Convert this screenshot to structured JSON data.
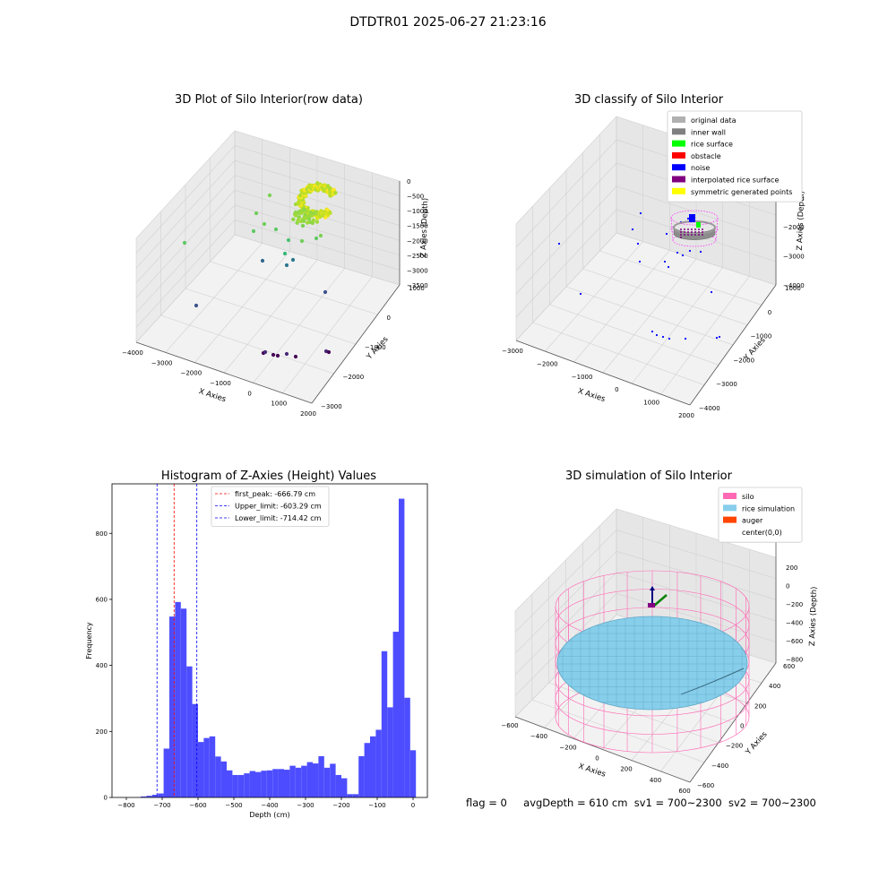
{
  "figure": {
    "suptitle": "DTDTR01 2025-06-27 21:23:16",
    "footer": {
      "flag": "flag = 0",
      "avg_depth": "avgDepth = 610 cm",
      "sv1": "sv1 = 700~2300",
      "sv2": "sv2 = 700~2300"
    }
  },
  "chart_data": [
    {
      "type": "scatter3d",
      "title": "3D Plot of Silo Interior(row data)",
      "xlabel": "X Axies",
      "ylabel": "Y Axies",
      "zlabel": "Z Axies (Depth)",
      "x_ticks": [
        "−4000",
        "−3000",
        "−2000",
        "−1000",
        "0",
        "1000",
        "2000"
      ],
      "y_ticks": [
        "1000",
        "0",
        "−1000",
        "−2000",
        "−3000"
      ],
      "z_ticks": [
        "0",
        "−500",
        "−1000",
        "−1500",
        "−2000",
        "−2500",
        "−3000",
        "−3500"
      ],
      "colormap": "viridis",
      "grid": true
    },
    {
      "type": "scatter3d",
      "title": "3D classify of Silo Interior",
      "xlabel": "X Axies",
      "ylabel": "Y Axies",
      "zlabel": "Z Axies (Depth)",
      "x_ticks": [
        "−3000",
        "−2000",
        "−1000",
        "0",
        "1000",
        "2000"
      ],
      "y_ticks": [
        "1000",
        "0",
        "−1000",
        "−2000",
        "−3000",
        "−4000"
      ],
      "z_ticks": [
        "0",
        "−1000",
        "−2000",
        "−3000",
        "−4000"
      ],
      "legend_position": "top-right",
      "legend": [
        {
          "label": "original data",
          "color": "#b0b0b0"
        },
        {
          "label": "inner wall",
          "color": "#808080"
        },
        {
          "label": "rice surface",
          "color": "#00ff00"
        },
        {
          "label": "obstacle",
          "color": "#ff0000"
        },
        {
          "label": "noise",
          "color": "#0000ff"
        },
        {
          "label": "interpolated rice surface",
          "color": "#800080"
        },
        {
          "label": "symmetric generated points",
          "color": "#ffff00"
        }
      ],
      "grid": true
    },
    {
      "type": "bar",
      "title": "Histogram of Z-Axies (Height) Values",
      "xlabel": "Depth (cm)",
      "ylabel": "Frequency",
      "xlim": [
        -840,
        40
      ],
      "ylim": [
        0,
        950
      ],
      "x_ticks": [
        "−800",
        "−700",
        "−600",
        "−500",
        "−400",
        "−300",
        "−200",
        "−100",
        "0"
      ],
      "y_ticks": [
        "0",
        "200",
        "400",
        "600",
        "800"
      ],
      "bin_width": 16,
      "bins_start": -760,
      "values": [
        3,
        5,
        8,
        12,
        148,
        548,
        592,
        572,
        397,
        283,
        168,
        180,
        185,
        124,
        109,
        82,
        68,
        68,
        73,
        80,
        77,
        81,
        82,
        86,
        86,
        84,
        96,
        90,
        96,
        107,
        103,
        125,
        90,
        102,
        68,
        58,
        10,
        10,
        125,
        165,
        185,
        205,
        443,
        273,
        502,
        905,
        302,
        143
      ],
      "bar_color": "#4d4dff",
      "vlines": [
        {
          "value": -666.79,
          "label": "first_peak: -666.79 cm",
          "color": "#ff0000"
        },
        {
          "value": -603.29,
          "label": "Upper_limit: -603.29 cm",
          "color": "#0000ff"
        },
        {
          "value": -714.42,
          "label": "Lower_limit: -714.42 cm",
          "color": "#0000ff"
        }
      ],
      "legend_position": "top-center"
    },
    {
      "type": "surface3d",
      "title": "3D simulation of Silo Interior",
      "xlabel": "X Axies",
      "ylabel": "Y Axies",
      "zlabel": "Z Axies (Depth)",
      "x_ticks": [
        "−600",
        "−400",
        "−200",
        "0",
        "200",
        "400",
        "600"
      ],
      "y_ticks": [
        "600",
        "400",
        "200",
        "0",
        "−200",
        "−400",
        "−600"
      ],
      "z_ticks": [
        "200",
        "0",
        "−200",
        "−400",
        "−600",
        "−800"
      ],
      "legend_position": "top-right",
      "legend": [
        {
          "label": "silo",
          "color": "#ff69b4"
        },
        {
          "label": "rice simulation",
          "color": "#87ceeb"
        },
        {
          "label": "auger",
          "color": "#ff4500"
        },
        {
          "label": "center(0,0)",
          "color": "#ffffff"
        }
      ],
      "grid": true
    }
  ]
}
